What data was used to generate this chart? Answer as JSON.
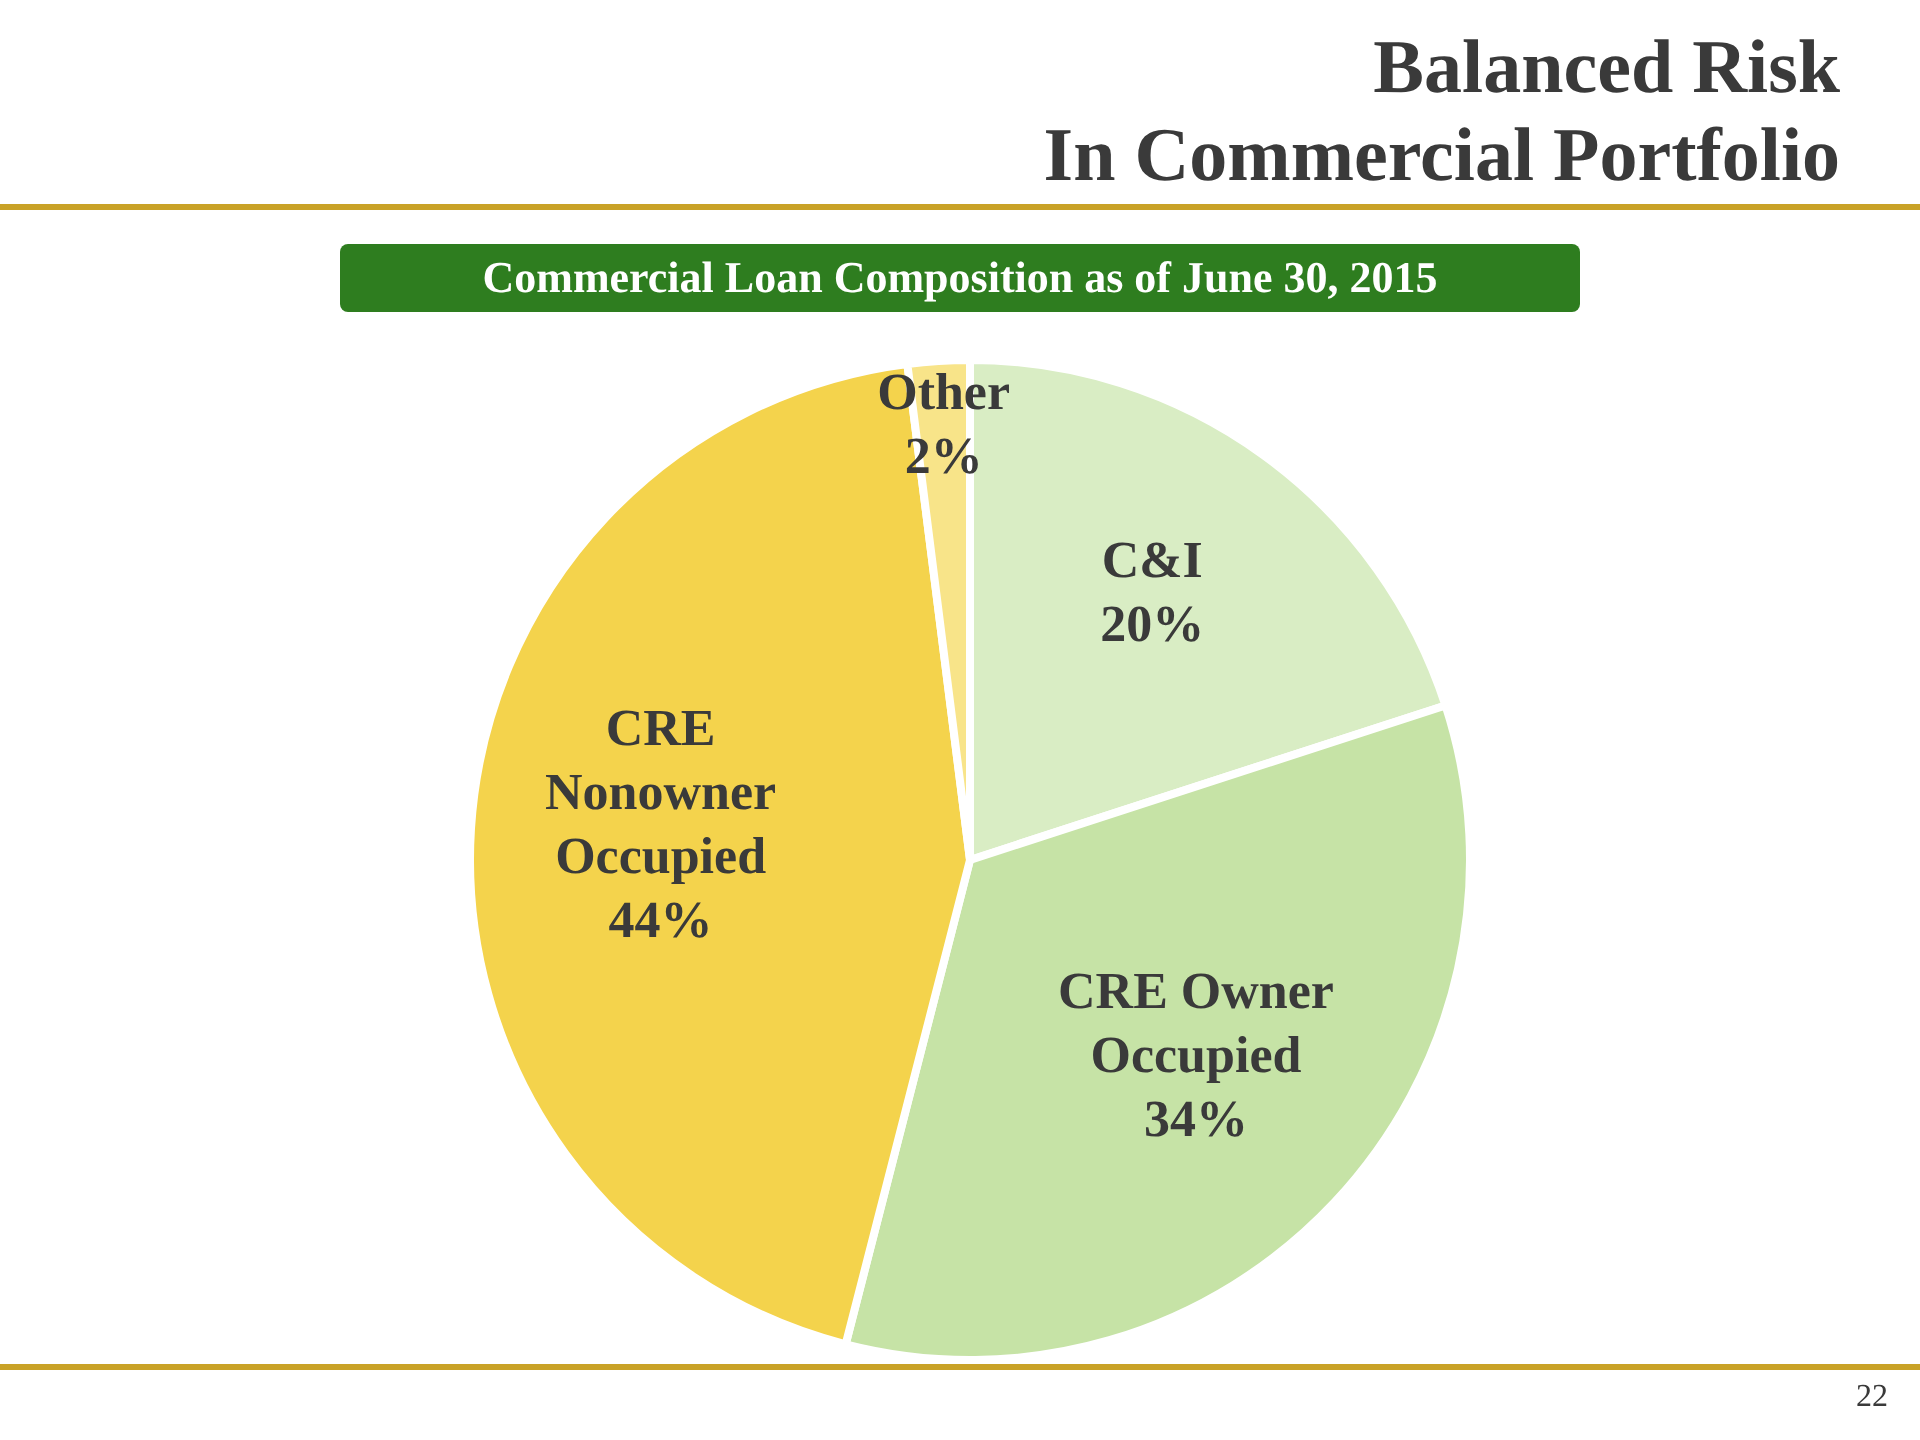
{
  "chart_data": {
    "type": "pie",
    "title": "Balanced Risk\nIn Commercial Portfolio",
    "subtitle": "Commercial Loan Composition as of June 30, 2015",
    "categories": [
      "C&I",
      "CRE Owner Occupied",
      "CRE Nonowner Occupied",
      "Other"
    ],
    "values": [
      20,
      34,
      44,
      2
    ],
    "colors": [
      "#d9edc4",
      "#c6e3a6",
      "#f4d34c",
      "#f8e489"
    ],
    "value_labels": [
      "20%",
      "34%",
      "44%",
      "2%"
    ],
    "annotations": [
      "22"
    ]
  }
}
